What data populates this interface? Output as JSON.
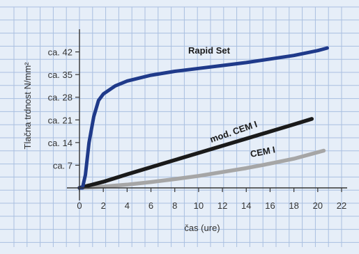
{
  "chart_data": {
    "type": "line",
    "xlabel": "čas (ure)",
    "ylabel": "Tlačna trdnost N/mm²",
    "xlim": [
      0,
      22
    ],
    "ylim": [
      0,
      49
    ],
    "grid": true,
    "x_ticks": [
      0,
      2,
      4,
      6,
      8,
      10,
      12,
      14,
      16,
      18,
      20,
      22
    ],
    "x_tick_labels": [
      "0",
      "2",
      "4",
      "6",
      "8",
      "10",
      "12",
      "14",
      "16",
      "18",
      "20",
      "22"
    ],
    "y_ticks": [
      7,
      14,
      21,
      28,
      35,
      42
    ],
    "y_tick_labels": [
      "ca. 7",
      "ca. 14",
      "ca. 21",
      "ca. 28",
      "ca. 35",
      "ca. 42"
    ],
    "series": [
      {
        "name": "Rapid Set",
        "color": "#1f3a8a",
        "x": [
          0,
          0.25,
          0.5,
          0.8,
          1.2,
          1.6,
          2,
          3,
          4,
          6,
          8,
          10,
          12,
          14,
          16,
          18,
          20,
          20.8
        ],
        "y": [
          0,
          0,
          4,
          14,
          22,
          27,
          29,
          31.5,
          33,
          34.8,
          36,
          36.9,
          37.8,
          38.7,
          39.8,
          40.9,
          42.4,
          43.2
        ]
      },
      {
        "name": "mod. CEM I",
        "color": "#1a1a1a",
        "x": [
          0,
          2,
          4,
          6,
          8,
          10,
          12,
          14,
          16,
          18,
          19.5
        ],
        "y": [
          0,
          1.9,
          4.2,
          6.4,
          8.6,
          10.8,
          13.0,
          15.2,
          17.4,
          19.6,
          21.3
        ]
      },
      {
        "name": "CEM I",
        "color": "#a6a6a6",
        "x": [
          0,
          2,
          4,
          6,
          8,
          10,
          12,
          14,
          16,
          18,
          20.5
        ],
        "y": [
          0,
          0.4,
          1.0,
          1.8,
          2.7,
          3.7,
          4.9,
          6.1,
          7.5,
          9.0,
          11.5
        ]
      }
    ]
  }
}
